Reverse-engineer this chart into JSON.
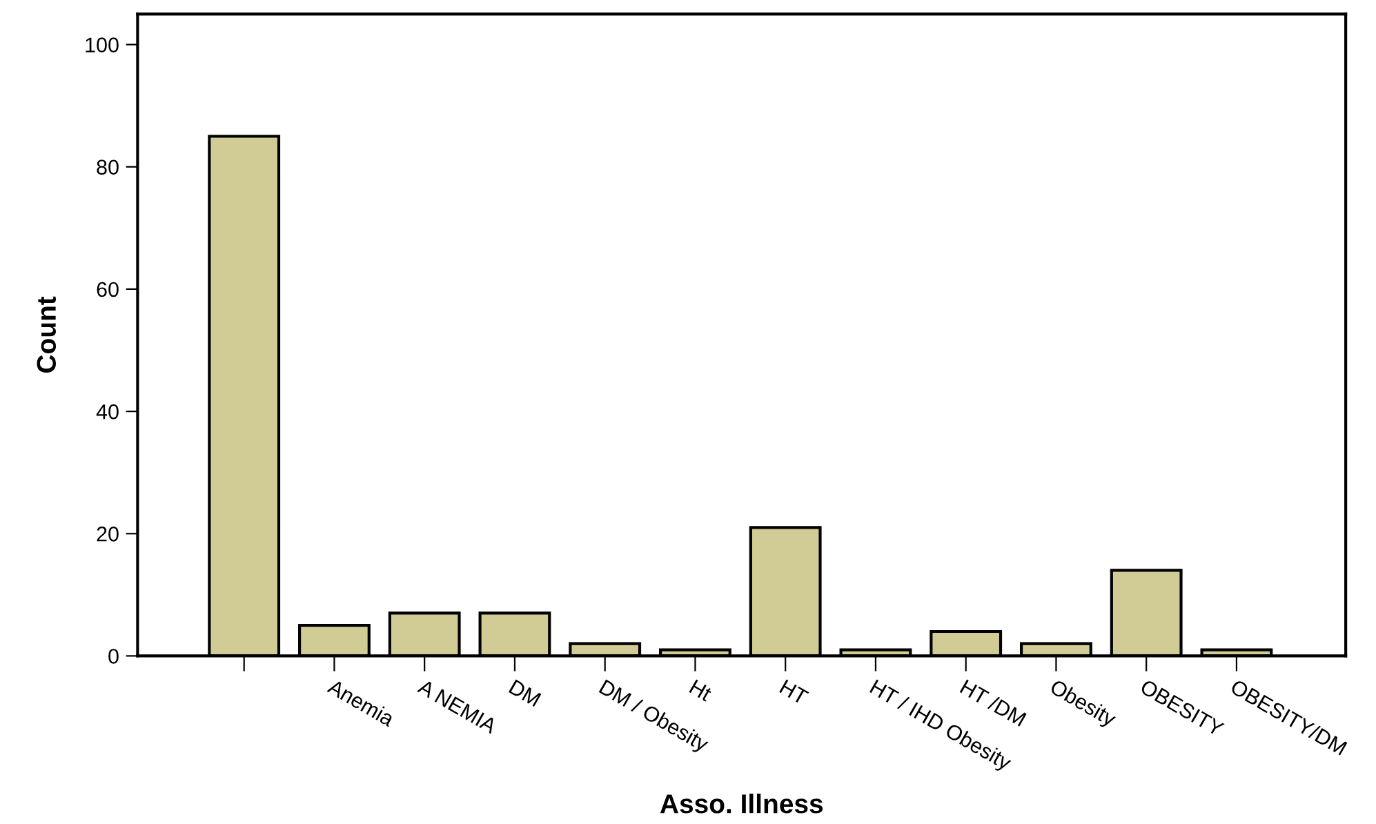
{
  "chart_data": {
    "type": "bar",
    "xlabel": "Asso. Illness",
    "ylabel": "Count",
    "categories": [
      null,
      "Anemia",
      "A NEMIA",
      "DM",
      "DM / Obesity",
      "Ht",
      "HT",
      "HT / IHD Obesity",
      "HT /DM",
      "Obesity",
      "OBESITY",
      "OBESITY/DM"
    ],
    "values": [
      85,
      5,
      7,
      7,
      2,
      1,
      21,
      1,
      4,
      2,
      14,
      1
    ],
    "color": "#d1cc95",
    "ylim": [
      0,
      105
    ],
    "yticks": [
      0,
      20,
      40,
      60,
      80,
      100
    ],
    "grid": false,
    "legend": false
  }
}
